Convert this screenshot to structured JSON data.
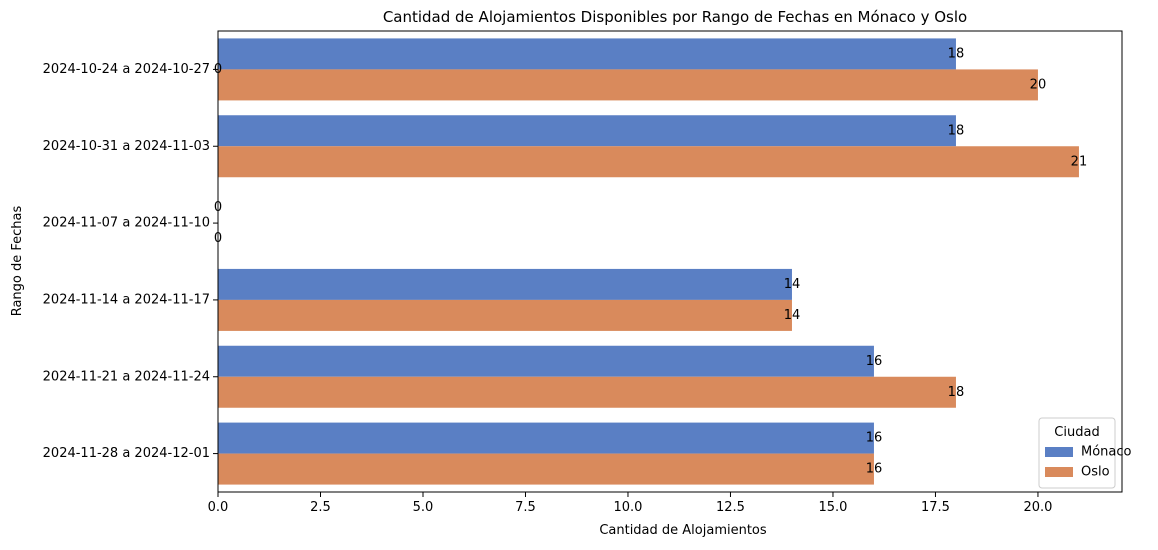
{
  "chart_data": {
    "type": "bar",
    "orientation": "horizontal",
    "title": "Cantidad de Alojamientos Disponibles por Rango de Fechas en Mónaco y Oslo",
    "xlabel": "Cantidad de Alojamientos",
    "ylabel": "Rango de Fechas",
    "xlim": [
      0,
      22.05
    ],
    "x_ticks": [
      "0.0",
      "2.5",
      "5.0",
      "7.5",
      "10.0",
      "12.5",
      "15.0",
      "17.5",
      "20.0"
    ],
    "categories": [
      "2024-10-24 a 2024-10-27",
      "2024-10-31 a 2024-11-03",
      "2024-11-07 a 2024-11-10",
      "2024-11-14 a 2024-11-17",
      "2024-11-21 a 2024-11-24",
      "2024-11-28 a 2024-12-01"
    ],
    "series": [
      {
        "name": "Mónaco",
        "color": "#5a7fc4",
        "values": [
          18,
          18,
          0,
          14,
          16,
          16
        ]
      },
      {
        "name": "Oslo",
        "color": "#d98a5c",
        "values": [
          20,
          21,
          0,
          14,
          18,
          16
        ]
      }
    ],
    "extra_labels": [
      {
        "category_index": 0,
        "value": 0,
        "text": "0"
      }
    ],
    "legend": {
      "title": "Ciudad",
      "position": "lower-right"
    },
    "grid": false
  }
}
